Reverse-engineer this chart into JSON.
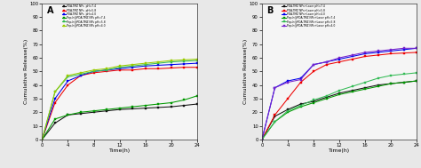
{
  "time": [
    0,
    2,
    4,
    6,
    8,
    10,
    12,
    14,
    16,
    18,
    20,
    22,
    24
  ],
  "panel_A": {
    "series": [
      {
        "label": "PDA-TMZ NPs  pH=7.4",
        "color": "#111111",
        "marker": "s",
        "values": [
          0,
          12,
          18,
          19,
          20,
          21,
          22,
          22.5,
          23,
          23.5,
          24,
          25,
          26
        ]
      },
      {
        "label": "PDA-TMZ NPs  pH=5.8",
        "color": "#ee0000",
        "marker": "s",
        "values": [
          0,
          27,
          40,
          47,
          49,
          50,
          51,
          51,
          52,
          52,
          52.5,
          53,
          53
        ]
      },
      {
        "label": "PDA-TMZ NPs  pH=4.0",
        "color": "#0000ee",
        "marker": "s",
        "values": [
          0,
          30,
          43,
          47,
          50,
          51,
          52,
          53,
          54,
          54.5,
          55,
          55.5,
          56
        ]
      },
      {
        "label": "Pep-h@PDA-TMZ NPs pH=7.4",
        "color": "#009900",
        "marker": "s",
        "values": [
          0,
          15,
          18,
          20,
          21,
          22,
          23,
          24,
          25,
          26,
          27,
          29,
          32
        ]
      },
      {
        "label": "Pep-h@PDA-TMZ NPs pH=5.8",
        "color": "#33bb55",
        "marker": "s",
        "values": [
          0,
          35,
          46,
          48,
          50,
          51,
          53,
          54,
          55,
          56,
          57,
          57.5,
          58
        ]
      },
      {
        "label": "Pep-h@PDA-TMZ NPs pH=4.0",
        "color": "#99cc00",
        "marker": "s",
        "values": [
          0,
          35,
          47,
          49,
          51,
          52,
          54,
          55,
          56,
          57,
          58,
          58.5,
          59
        ]
      }
    ],
    "ylabel": "Cumulative Release(%)",
    "xlabel": "Time(h)",
    "ylim": [
      0,
      100
    ],
    "xlim": [
      0,
      24
    ],
    "yticks": [
      0,
      10,
      20,
      30,
      40,
      50,
      60,
      70,
      80,
      90,
      100
    ],
    "xticks": [
      0,
      4,
      8,
      12,
      16,
      20,
      24
    ],
    "label": "A"
  },
  "panel_B": {
    "series": [
      {
        "label": "PDA-TMZ NPs+Laser pH=7.4",
        "color": "#111111",
        "marker": "s",
        "values": [
          0,
          17,
          22,
          26,
          28,
          31,
          34,
          36,
          38,
          40,
          41,
          42,
          43
        ]
      },
      {
        "label": "PDA-TMZ NPs+Laser pH=5.8",
        "color": "#ee0000",
        "marker": "s",
        "values": [
          0,
          18,
          30,
          42,
          50,
          55,
          57,
          59,
          61,
          62,
          63,
          63.5,
          64
        ]
      },
      {
        "label": "PDA-TMZ NPs+Laser pH=4.0",
        "color": "#0000ee",
        "marker": "s",
        "values": [
          0,
          38,
          43,
          45,
          55,
          57,
          59,
          61,
          63,
          64,
          65,
          66,
          67
        ]
      },
      {
        "label": "Pep-h@PDA-TMZ NPs+Laser pH=7.4",
        "color": "#009900",
        "marker": "s",
        "values": [
          0,
          13,
          20,
          24,
          27,
          30,
          33,
          35,
          37,
          39,
          41,
          42,
          43
        ]
      },
      {
        "label": "Pep-h@PDA-TMZ NPs+Laser pH=5.8",
        "color": "#33bb55",
        "marker": "s",
        "values": [
          0,
          13,
          21,
          25,
          29,
          32,
          36,
          39,
          42,
          45,
          47,
          48,
          49
        ]
      },
      {
        "label": "Pep-h@PDA-TMZ NPs+Laser pH=4.0",
        "color": "#7722cc",
        "marker": "s",
        "values": [
          0,
          38,
          42,
          44,
          55,
          57,
          60,
          62,
          64,
          65,
          66,
          67,
          67
        ]
      }
    ],
    "ylabel": "Cumulative Release(%)",
    "xlabel": "Time(h)",
    "ylim": [
      0,
      100
    ],
    "xlim": [
      0,
      24
    ],
    "yticks": [
      0,
      10,
      20,
      30,
      40,
      50,
      60,
      70,
      80,
      90,
      100
    ],
    "xticks": [
      0,
      4,
      8,
      12,
      16,
      20,
      24
    ],
    "label": "B"
  },
  "figsize": [
    4.74,
    1.89
  ],
  "dpi": 100,
  "bg_color": "#f0f0f0"
}
